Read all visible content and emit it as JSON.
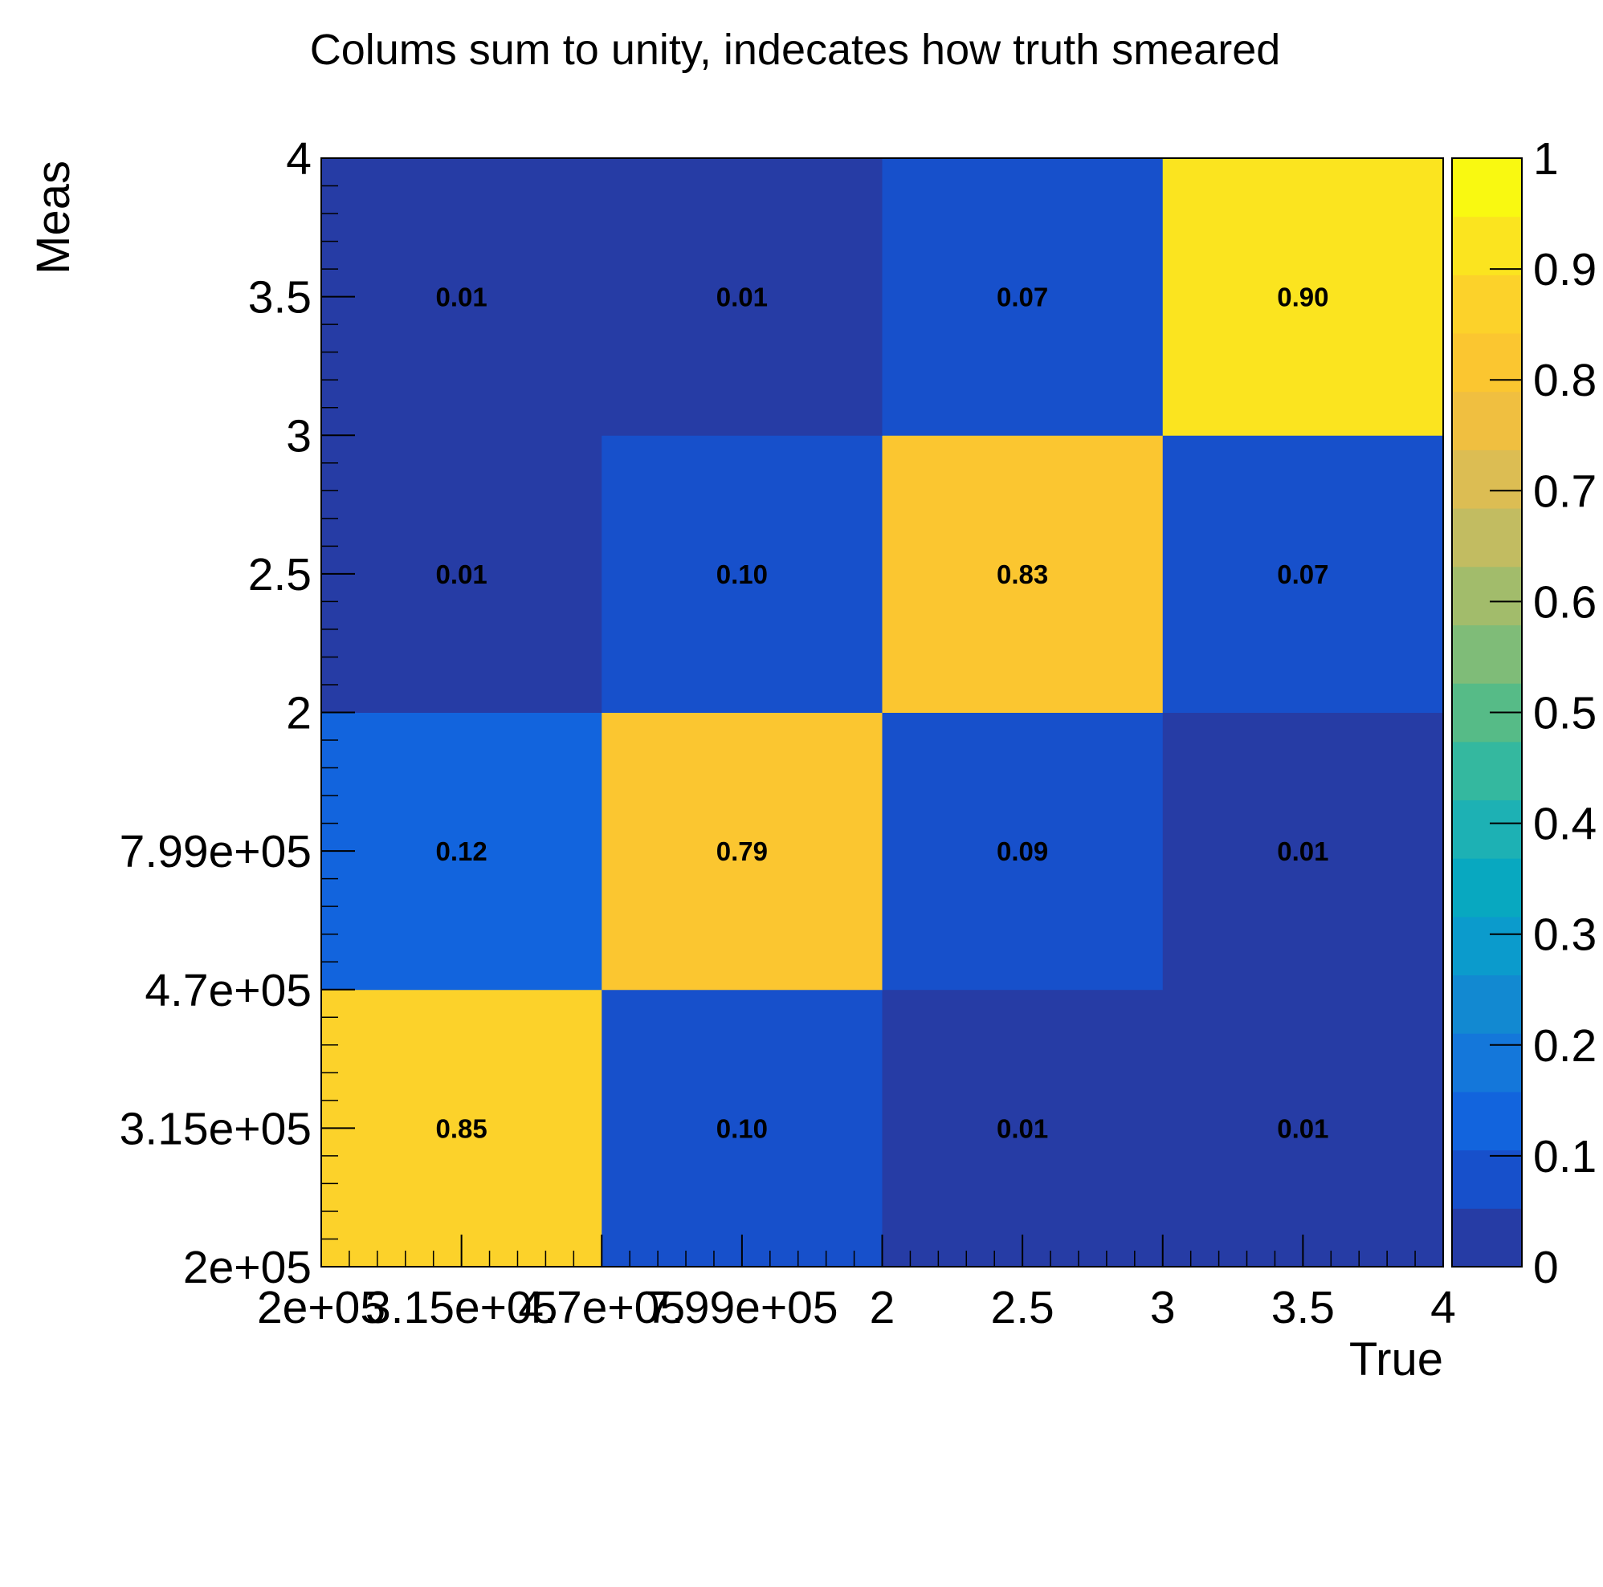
{
  "chart_data": {
    "type": "heatmap",
    "title": "Colums sum to unity, indecates how truth smeared",
    "xlabel": "True",
    "ylabel": "Meas",
    "x_bins": [
      {
        "lo_label": "2e+05",
        "mid_label": "3.15e+05",
        "hi_label": "4.7e+05"
      },
      {
        "lo_label": "4.7e+05",
        "mid_label": "7.99e+05",
        "hi_label": "2"
      },
      {
        "lo_label": "2",
        "mid_label": "2.5",
        "hi_label": "3"
      },
      {
        "lo_label": "3",
        "mid_label": "3.5",
        "hi_label": "4"
      }
    ],
    "x_tick_labels": [
      "2e+05",
      "3.15e+05",
      "4.7e+05",
      "7.99e+05",
      "2",
      "2.5",
      "3",
      "3.5",
      "4"
    ],
    "y_tick_labels": [
      "2e+05",
      "3.15e+05",
      "4.7e+05",
      "7.99e+05",
      "2",
      "2.5",
      "3",
      "3.5",
      "4"
    ],
    "cells": [
      [
        0.85,
        0.1,
        0.01,
        0.01
      ],
      [
        0.12,
        0.79,
        0.09,
        0.01
      ],
      [
        0.01,
        0.1,
        0.83,
        0.07
      ],
      [
        0.01,
        0.01,
        0.07,
        0.9
      ]
    ],
    "cell_labels": [
      [
        "0.85",
        "0.10",
        "0.01",
        "0.01"
      ],
      [
        "0.12",
        "0.79",
        "0.09",
        "0.01"
      ],
      [
        "0.01",
        "0.10",
        "0.83",
        "0.07"
      ],
      [
        "0.01",
        "0.01",
        "0.07",
        "0.90"
      ]
    ],
    "cells_row_order": "rows from bottom (Meas bin 1) to top (Meas bin 4), columns left to right (True bin 1 to 4)",
    "zlim": [
      0,
      1
    ],
    "colorbar_tick_labels": [
      "0",
      "0.1",
      "0.2",
      "0.3",
      "0.4",
      "0.5",
      "0.6",
      "0.7",
      "0.8",
      "0.9",
      "1"
    ],
    "palette": [
      "#263ca5",
      "#1750cb",
      "#1264dd",
      "#1477da",
      "#1289d1",
      "#0b9bcc",
      "#08a8c0",
      "#1db1b4",
      "#34b89f",
      "#56bb87",
      "#7fbc78",
      "#a2bc6b",
      "#c2bc61",
      "#dcbd53",
      "#f0bf40",
      "#fbc630",
      "#fcd22a",
      "#fbe41f",
      "#f9f911"
    ],
    "grid": false
  }
}
